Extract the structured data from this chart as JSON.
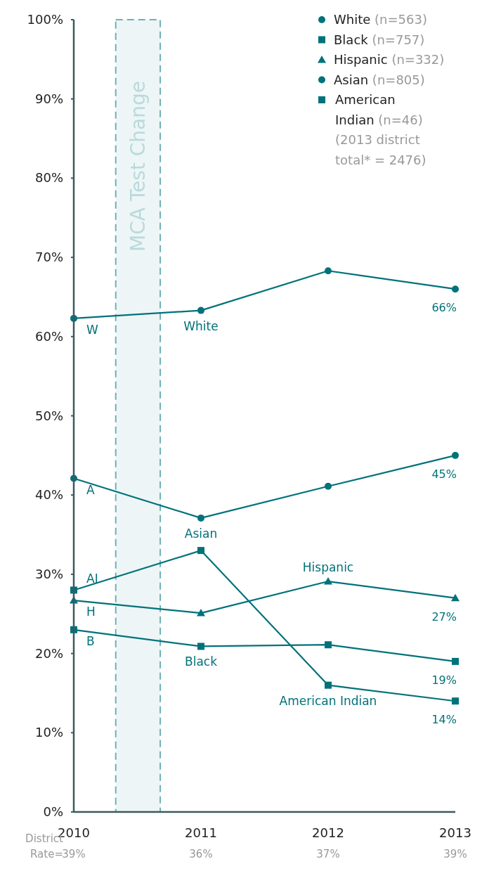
{
  "chart_data": {
    "type": "line",
    "x": [
      2010,
      2011,
      2012,
      2013
    ],
    "xlim": [
      2010,
      2013
    ],
    "xticks": [
      2010,
      2011,
      2012,
      2013
    ],
    "ylim": [
      0,
      100
    ],
    "yticks": [
      {
        "value": 0,
        "label": "0%"
      },
      {
        "value": 10,
        "label": "10%"
      },
      {
        "value": 20,
        "label": "20%"
      },
      {
        "value": 30,
        "label": "30%"
      },
      {
        "value": 40,
        "label": "40%"
      },
      {
        "value": 50,
        "label": "50%"
      },
      {
        "value": 60,
        "label": "60%"
      },
      {
        "value": 70,
        "label": "70%"
      },
      {
        "value": 80,
        "label": "80%"
      },
      {
        "value": 90,
        "label": "90%"
      },
      {
        "value": 100,
        "label": "100%"
      }
    ],
    "legend": "top right",
    "grid": false,
    "line_style": "solid",
    "series": [
      {
        "name": "White (n=563)",
        "color": "#00727a",
        "marker": "circle",
        "values": [
          62.3,
          63.3,
          68.3,
          66
        ],
        "value_labels": [
          null,
          null,
          null,
          "66%"
        ]
      },
      {
        "name": "Black (n=757)",
        "color": "#00727a",
        "marker": "square",
        "values": [
          23,
          20.9,
          21.1,
          19
        ],
        "value_labels": [
          null,
          null,
          null,
          "19%"
        ]
      },
      {
        "name": "Hispanic (n=332)",
        "color": "#00727a",
        "marker": "triangle",
        "values": [
          26.7,
          25.1,
          29.1,
          27
        ],
        "value_labels": [
          null,
          null,
          null,
          "27%"
        ]
      },
      {
        "name": "Asian (n=805)",
        "color": "#00727a",
        "marker": "circle",
        "values": [
          42.1,
          37.1,
          41.1,
          45
        ],
        "value_labels": [
          null,
          null,
          null,
          "45%"
        ]
      },
      {
        "name": "American Indian (n=46)",
        "color": "#00727a",
        "marker": "square",
        "values": [
          28,
          33,
          16,
          14
        ],
        "value_labels": [
          null,
          null,
          null,
          "14%"
        ]
      }
    ],
    "bands": [
      {
        "axis": "x",
        "from": 2010.33,
        "to": 2010.68,
        "label": "MCA Test Change",
        "color": "#6fb0b4"
      }
    ],
    "annotations": [
      {
        "text": "W",
        "x": 2010,
        "y": 62.3
      },
      {
        "text": "White",
        "x": 2011,
        "y": 63.3
      },
      {
        "text": "B",
        "x": 2010,
        "y": 23
      },
      {
        "text": "Black",
        "x": 2011,
        "y": 20.9
      },
      {
        "text": "H",
        "x": 2010,
        "y": 26.7
      },
      {
        "text": "Hispanic",
        "x": 2012,
        "y": 29.1
      },
      {
        "text": "A",
        "x": 2010,
        "y": 42.1
      },
      {
        "text": "Asian",
        "x": 2011,
        "y": 37.1
      },
      {
        "text": "AI",
        "x": 2010,
        "y": 28
      },
      {
        "text": "American Indian",
        "x": 2012,
        "y": 16
      },
      "(2013 district total* = 2476)",
      "District Rate=",
      "39%",
      "36%",
      "37%",
      "39%"
    ]
  }
}
